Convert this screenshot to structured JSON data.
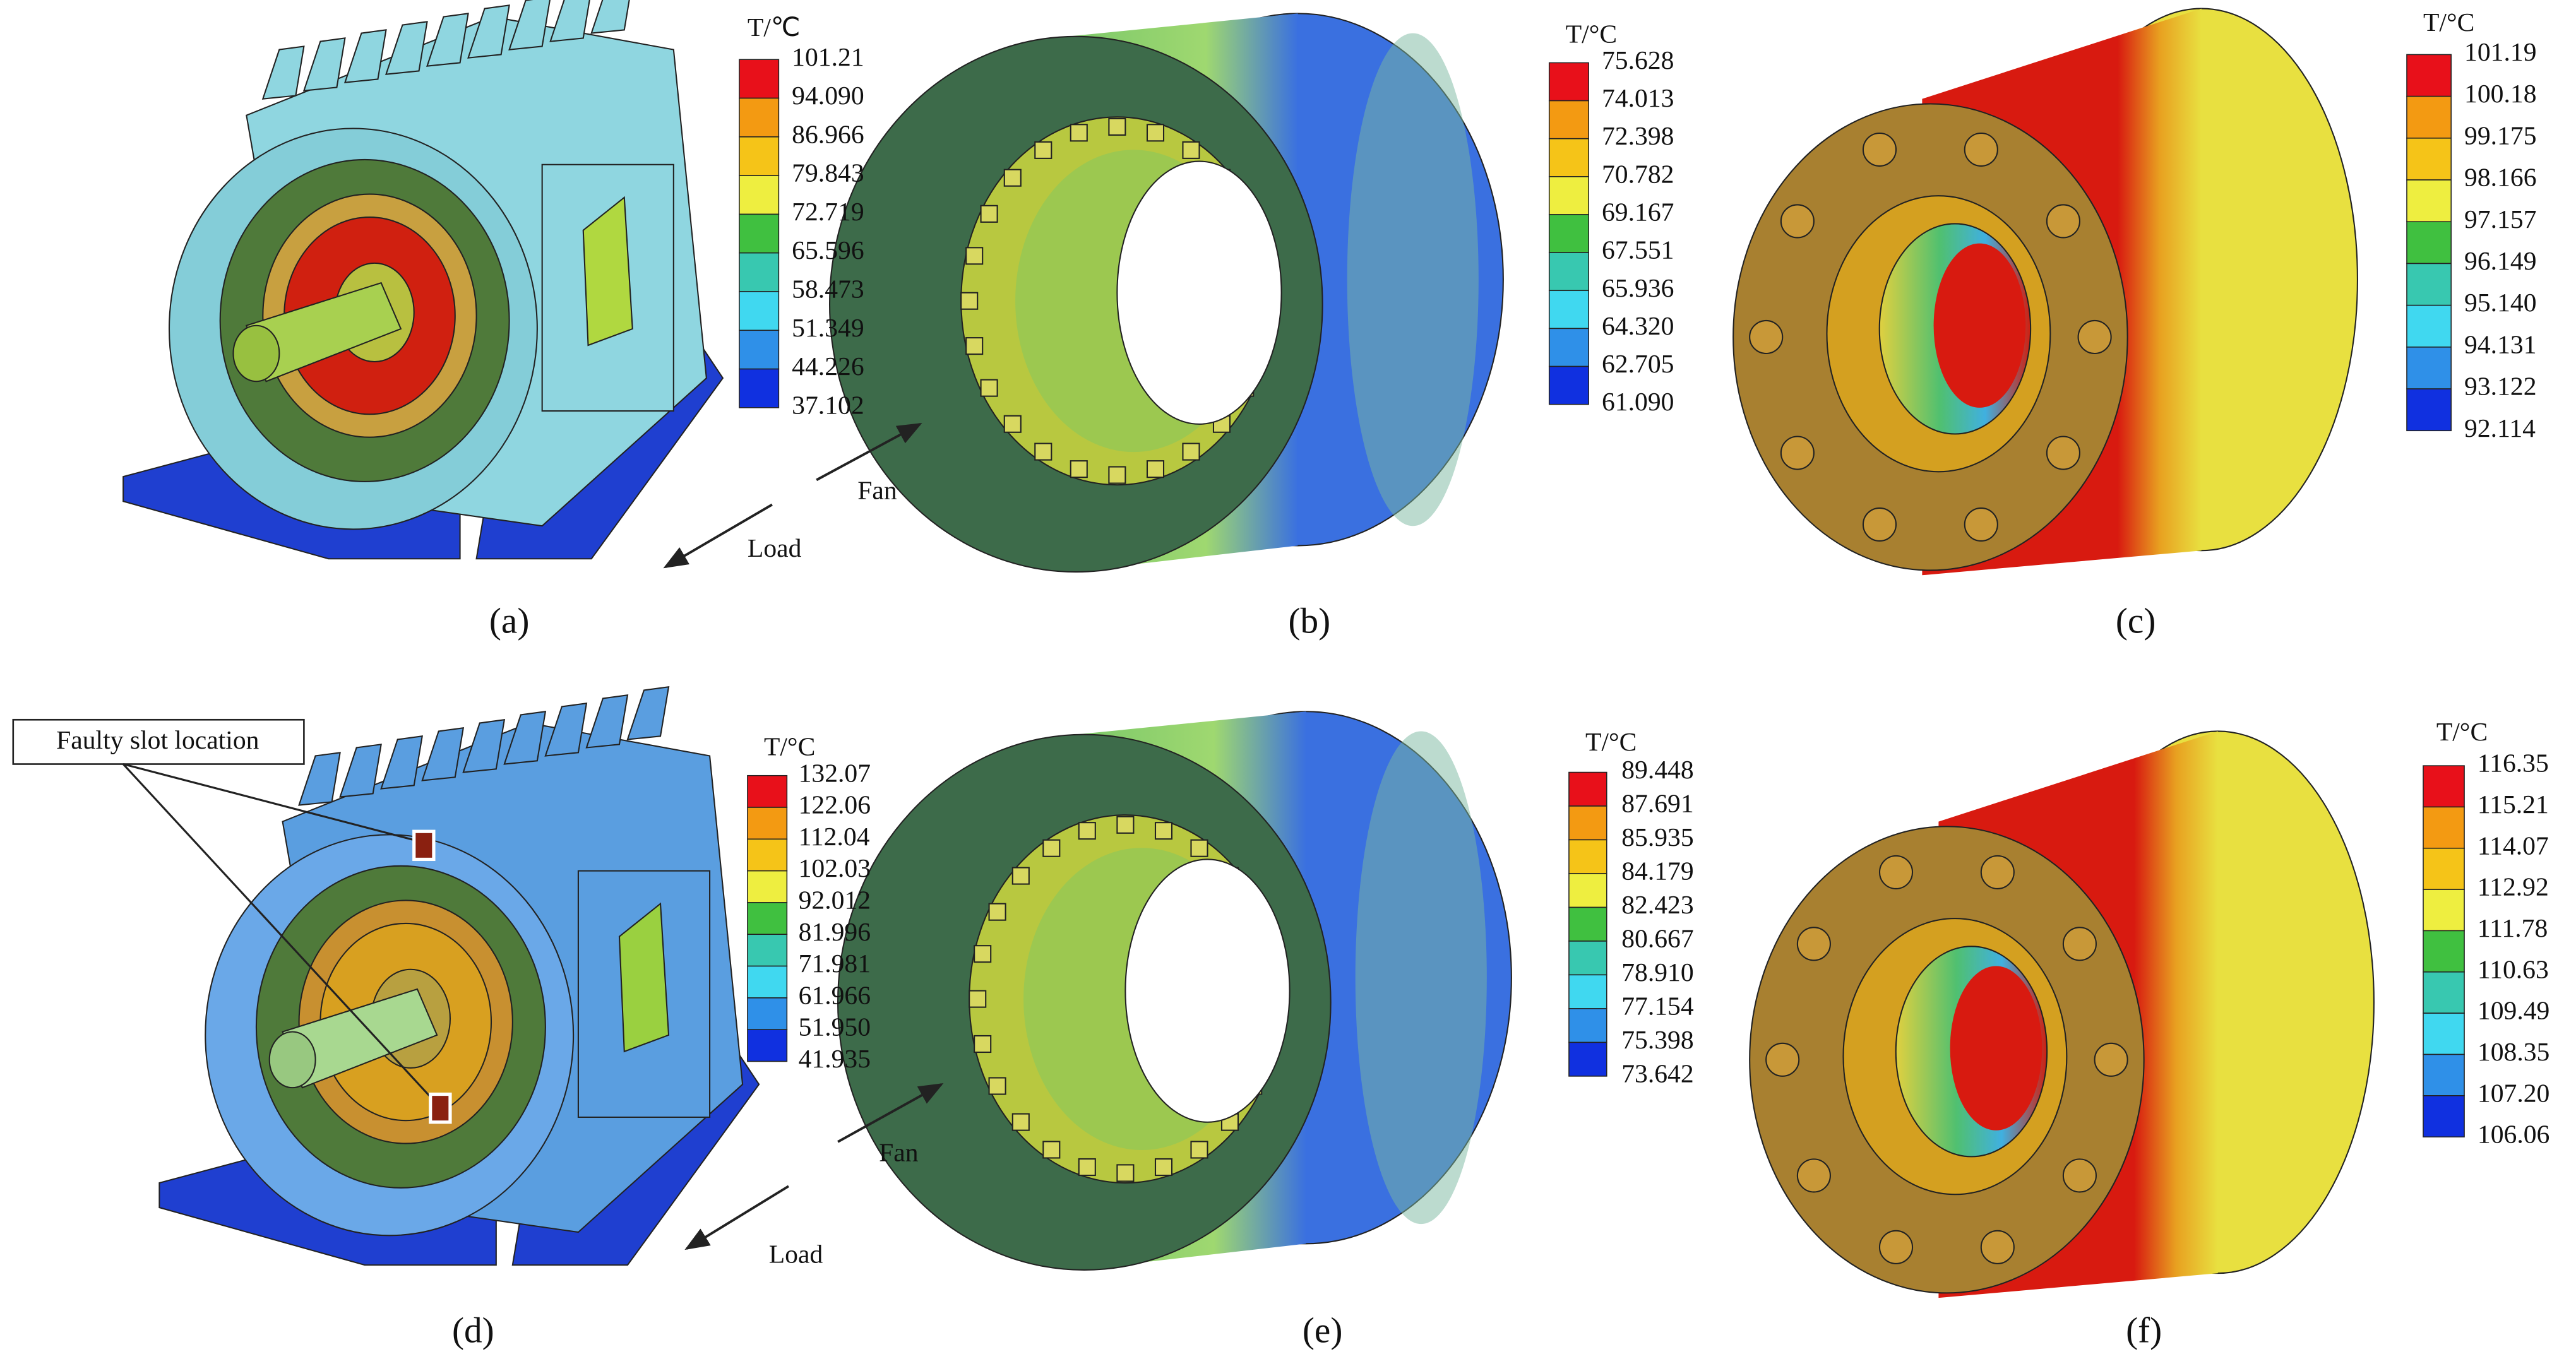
{
  "panels": [
    {
      "label": "(a)",
      "legend": {
        "title": "T/℃",
        "ticks": [
          "101.21",
          "94.090",
          "86.966",
          "79.843",
          "72.719",
          "65.596",
          "58.473",
          "51.349",
          "44.226",
          "37.102"
        ]
      },
      "arrows": {
        "fan": "Fan",
        "load": "Load"
      }
    },
    {
      "label": "(b)",
      "legend": {
        "title": "T/°C",
        "ticks": [
          "75.628",
          "74.013",
          "72.398",
          "70.782",
          "69.167",
          "67.551",
          "65.936",
          "64.320",
          "62.705",
          "61.090"
        ]
      }
    },
    {
      "label": "(c)",
      "legend": {
        "title": "T/°C",
        "ticks": [
          "101.19",
          "100.18",
          "99.175",
          "98.166",
          "97.157",
          "96.149",
          "95.140",
          "94.131",
          "93.122",
          "92.114"
        ]
      }
    },
    {
      "label": "(d)",
      "legend": {
        "title": "T/°C",
        "ticks": [
          "132.07",
          "122.06",
          "112.04",
          "102.03",
          "92.012",
          "81.996",
          "71.981",
          "61.966",
          "51.950",
          "41.935"
        ]
      },
      "arrows": {
        "fan": "Fan",
        "load": "Load"
      },
      "callout": "Faulty slot location"
    },
    {
      "label": "(e)",
      "legend": {
        "title": "T/°C",
        "ticks": [
          "89.448",
          "87.691",
          "85.935",
          "84.179",
          "82.423",
          "80.667",
          "78.910",
          "77.154",
          "75.398",
          "73.642"
        ]
      }
    },
    {
      "label": "(f)",
      "legend": {
        "title": "T/°C",
        "ticks": [
          "116.35",
          "115.21",
          "114.07",
          "112.92",
          "111.78",
          "110.63",
          "109.49",
          "108.35",
          "107.20",
          "106.06"
        ]
      }
    }
  ]
}
